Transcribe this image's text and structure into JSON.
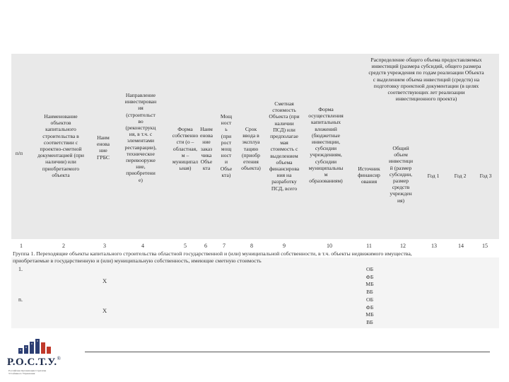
{
  "header": {
    "c1": "п/п",
    "c2": "Наименование\nобъектов\nкапитального\nстроительства в\nсоответствии с\nпроектно-сметной\nдокументацией (при\nналичии) или\nприобретаемого\nобъекта",
    "c3": "Наим\nенова\nние\nГРБС",
    "c4": "Направление\nинвестирован\nия\n(строительст\nво\n(реконструкц\nия, в т.ч. с\nэлементами\nреставрации),\nтехническое\nперевооруже\nние,\nприобретени\nе)",
    "c5": "Форма\nсобственно\nсти (о –\nобластная,\nм –\nмуниципал\nьная)",
    "c6": "Наим\nенова\nние\nзаказ\nчика\nОбъе\nкта",
    "c7": "Мощ\nност\nь\n(при\nрост\nмощ\nност\nи\nОбъе\nкта)",
    "c8": "Срок\nввода в\nэксплуа\nтацию\n(приобр\nетения\nобъекта)",
    "c9": "Сметная\nстоимость\nОбъекта (при\nналичии\nПСД) или\nпредполагае\nмая\nстоимость с\nвыделением\nобъема\nфинансирова\nния на\nразработку\nПСД, всего",
    "c10": "Форма\nосуществления\nкапитальных\nвложений\n(бюджетные\nинвестиции,\nсубсидии\nучреждениям,\nсубсидии\nмуниципальны\nм\nобразованиям)",
    "dist": "Распределение общего объема предоставляемых\nинвестиций (размера субсидий, общего размера\nсредств учреждения по годам реализации Объекта\nс выделением объема инвестиций (средств) на\nподготовку проектной документации (в целях\nсоответствующих лет реализации\nинвестиционного проекта)",
    "c11": "Источник\nфинансир\nования",
    "c12": "Общий\nобъем\nинвестици\nй (размер\nсубсидии,\nразмер\nсредств\nучрежден\nия)",
    "c13": "Год 1",
    "c14": "Год 2",
    "c15": "Год 3"
  },
  "column_numbers": [
    "1",
    "2",
    "3",
    "4",
    "5",
    "6",
    "7",
    "8",
    "9",
    "10",
    "11",
    "12",
    "13",
    "14",
    "15"
  ],
  "group1": "Группа 1. Переходящие объекты капитального строительства областной государственной и (или) муниципальной собственности, в т.ч. объекты недвижимого имущества,\nприобретаемые в государственную и (или) муниципальную собственность, имеющие сметную стоимость",
  "rows": [
    {
      "label": "1.",
      "mark": "Х",
      "sources": [
        "ОБ",
        "ФБ",
        "МБ",
        "ВБ"
      ]
    },
    {
      "label": "n.",
      "mark": "Х",
      "sources": [
        "ОБ",
        "ФБ",
        "МБ",
        "ВБ"
      ]
    }
  ],
  "logo": {
    "name": "Р.О.С.Т.У.",
    "mark": "®",
    "subtitle": "Российская Организация Стратегии Устойчивого Управления"
  }
}
